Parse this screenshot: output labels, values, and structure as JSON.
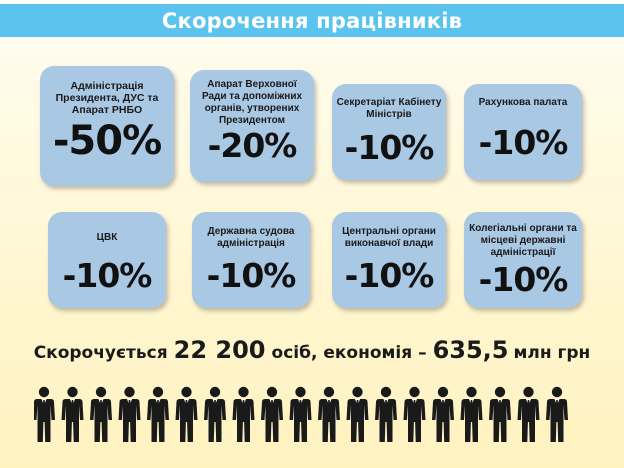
{
  "title": "Скорочення працівників",
  "chart_data": {
    "type": "table",
    "items": [
      {
        "label": "Адміністрація Президента, ДУС та Апарат РНБО",
        "value": "-50%"
      },
      {
        "label": "Апарат Верховної Ради та допоміжних органів, утворених Президентом",
        "value": "-20%"
      },
      {
        "label": "Секретаріат Кабінету Міністрів",
        "value": "-10%"
      },
      {
        "label": "Рахункова палата",
        "value": "-10%"
      },
      {
        "label": "ЦВК",
        "value": "-10%"
      },
      {
        "label": "Державна судова адміністрація",
        "value": "-10%"
      },
      {
        "label": "Центральні органи виконавчої влади",
        "value": "-10%"
      },
      {
        "label": "Колегіальні органи та місцеві державні адміністрації",
        "value": "-10%"
      }
    ]
  },
  "summary": {
    "part1": "Скорочується",
    "count": "22 200",
    "part2": "осіб, економія –",
    "amount": "635,5",
    "unit": "млн грн"
  },
  "people_icon": "person-in-suit-icon",
  "people_count": 19,
  "colors": {
    "title_bar": "#5bc4ee",
    "card": "#a9c8e4",
    "figure": "#1a1a1a"
  }
}
